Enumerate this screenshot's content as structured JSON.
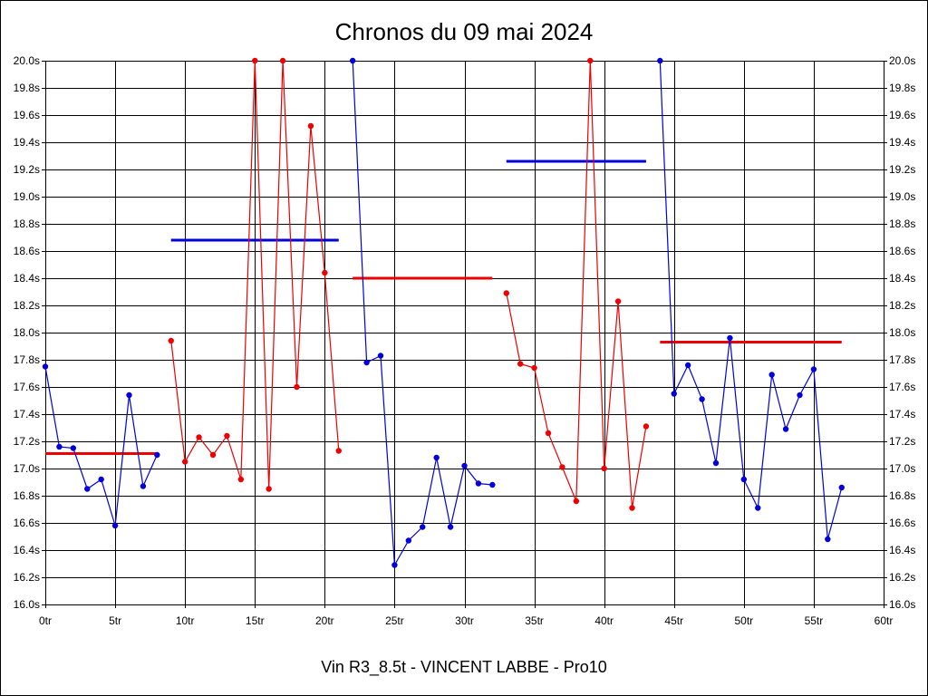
{
  "chart_data": {
    "type": "line",
    "title": "Chronos du 09 mai 2024",
    "footer": "Vin R3_8.5t - VINCENT LABBE - Pro10",
    "grid": true,
    "xlim": [
      0,
      60
    ],
    "ylim": [
      16.0,
      20.0
    ],
    "x_ticks": [
      0,
      5,
      10,
      15,
      20,
      25,
      30,
      35,
      40,
      45,
      50,
      55,
      60
    ],
    "x_tick_labels": [
      "0tr",
      "5tr",
      "10tr",
      "15tr",
      "20tr",
      "25tr",
      "30tr",
      "35tr",
      "40tr",
      "45tr",
      "50tr",
      "55tr",
      "60tr"
    ],
    "y_ticks": [
      16.0,
      16.2,
      16.4,
      16.6,
      16.8,
      17.0,
      17.2,
      17.4,
      17.6,
      17.8,
      18.0,
      18.2,
      18.4,
      18.6,
      18.8,
      19.0,
      19.2,
      19.4,
      19.6,
      19.8,
      20.0
    ],
    "y_tick_labels": [
      "16.0s",
      "16.2s",
      "16.4s",
      "16.6s",
      "16.8s",
      "17.0s",
      "17.2s",
      "17.4s",
      "17.6s",
      "17.8s",
      "18.0s",
      "18.2s",
      "18.4s",
      "18.6s",
      "18.8s",
      "19.0s",
      "19.2s",
      "19.4s",
      "19.6s",
      "19.8s",
      "20.0s"
    ],
    "colors": {
      "blue": "#0000dd",
      "red": "#ee0000"
    },
    "series": [
      {
        "color": "blue",
        "x": [
          0,
          1,
          2,
          3,
          4,
          5,
          6,
          7,
          8
        ],
        "y": [
          17.75,
          17.16,
          17.15,
          16.85,
          16.92,
          16.58,
          17.54,
          16.87,
          17.1
        ]
      },
      {
        "color": "red",
        "x": [
          9,
          10,
          11,
          12,
          13,
          14,
          15,
          16,
          17,
          18,
          19,
          20,
          21
        ],
        "y": [
          17.94,
          17.05,
          17.23,
          17.1,
          17.24,
          16.92,
          20.0,
          16.85,
          20.0,
          17.6,
          19.52,
          18.44,
          17.13
        ]
      },
      {
        "color": "blue",
        "x": [
          22,
          23,
          24,
          25,
          26,
          27,
          28,
          29,
          30,
          31,
          32
        ],
        "y": [
          20.0,
          17.78,
          17.83,
          16.29,
          16.47,
          16.57,
          17.08,
          16.57,
          17.02,
          16.89,
          16.88
        ]
      },
      {
        "color": "red",
        "x": [
          33,
          34,
          35,
          36,
          37,
          38,
          39,
          40,
          41,
          42,
          43
        ],
        "y": [
          18.29,
          17.77,
          17.74,
          17.26,
          17.01,
          16.76,
          20.0,
          17.0,
          18.23,
          16.71,
          17.31
        ]
      },
      {
        "color": "blue",
        "x": [
          44,
          45,
          46,
          47,
          48,
          49,
          50,
          51,
          52,
          53,
          54,
          55,
          56,
          57
        ],
        "y": [
          20.0,
          17.55,
          17.76,
          17.51,
          17.04,
          17.96,
          16.92,
          16.71,
          17.69,
          17.29,
          17.54,
          17.73,
          16.48,
          16.86
        ]
      }
    ],
    "averages": [
      {
        "color": "red",
        "x0": 0,
        "x1": 8,
        "y": 17.11
      },
      {
        "color": "blue",
        "x0": 9,
        "x1": 21,
        "y": 18.68
      },
      {
        "color": "red",
        "x0": 22,
        "x1": 32,
        "y": 18.4
      },
      {
        "color": "blue",
        "x0": 33,
        "x1": 43,
        "y": 19.26
      },
      {
        "color": "red",
        "x0": 44,
        "x1": 57,
        "y": 17.93
      }
    ]
  }
}
